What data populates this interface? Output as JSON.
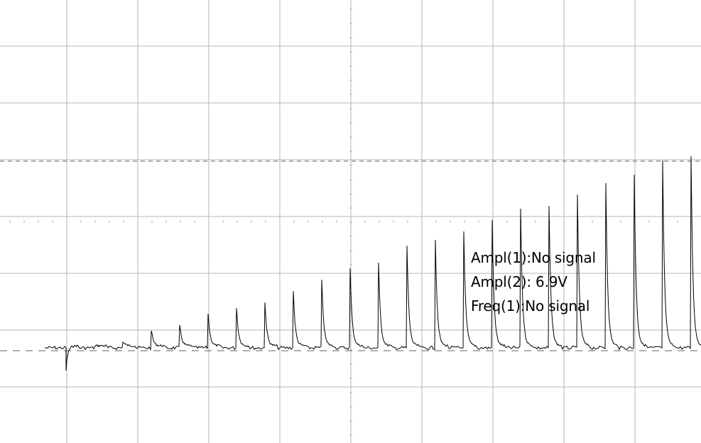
{
  "readouts": {
    "ampl1": "Ampl(1):No signal",
    "ampl2": "Ampl(2): 6.9V",
    "freq1": "Freq(1):No signal"
  },
  "colors": {
    "background": "#ffffff",
    "grid": "#b4b4b4",
    "trace": "#000000",
    "cursor": "#606060"
  },
  "chart_data": {
    "type": "line",
    "title": "",
    "xlabel": "",
    "ylabel": "",
    "grid": true,
    "x_divisions": 10,
    "y_divisions": 8,
    "xlim": [
      0,
      10
    ],
    "ylim": [
      -4,
      4
    ],
    "cursors": {
      "upper_level_div": 1.9,
      "lower_level_div": -2.3
    },
    "series": [
      {
        "baseline_div": -2.3,
        "pulse_x_div": [
          0,
          0.98,
          1.98,
          2.98,
          3.98,
          4.98,
          5.98,
          6.98,
          7.98,
          8.98,
          9.98,
          10.98,
          11.98,
          12.98,
          13.98,
          14.98,
          15.98,
          16.98,
          17.98,
          18.98,
          19.98,
          20.98,
          21.98
        ],
        "pulse_peak_div": [
          -1.9,
          -1.5,
          -1.4,
          -1.2,
          -1.1,
          -0.9,
          -0.8,
          -0.7,
          -0.5,
          -0.3,
          -0.1,
          0.0,
          0.3,
          0.4,
          0.55,
          0.75,
          0.95,
          1.0,
          1.2,
          1.4,
          1.55,
          1.8,
          1.95
        ]
      }
    ]
  }
}
